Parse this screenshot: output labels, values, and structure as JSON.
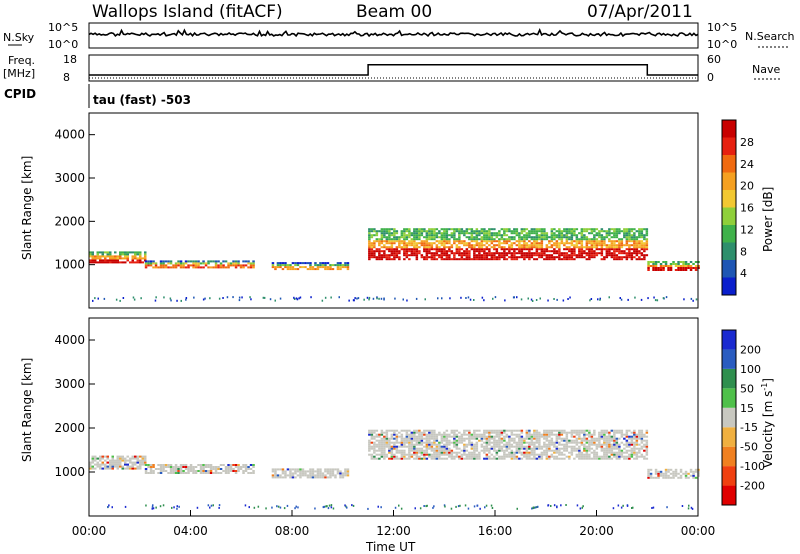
{
  "header": {
    "station": "Wallops Island (fitACF)",
    "beam": "Beam 00",
    "date": "07/Apr/2011"
  },
  "top_panel": {
    "left_label": "N.Sky",
    "right_label": "N.Search",
    "left_ticks": [
      "10^5",
      "10^0"
    ],
    "right_ticks": [
      "10^5",
      "10^0"
    ]
  },
  "freq_panel": {
    "left_label_line1": "Freq.",
    "left_label_line2": "[MHz]",
    "left_ticks": [
      "18",
      "8"
    ],
    "right_label": "Nave",
    "right_ticks": [
      "60",
      "0"
    ],
    "cpid_label": "CPID",
    "cpid_text": "tau (fast) -503"
  },
  "power_panel": {
    "ylabel": "Slant Range [km]",
    "ytick_labels": [
      "4000",
      "3000",
      "2000",
      "1000"
    ],
    "colorbar_label": "Power [dB]",
    "colorbar_ticks": [
      "28",
      "24",
      "20",
      "16",
      "12",
      "8",
      "4"
    ],
    "colors": [
      "#0a1fcc",
      "#1e56b4",
      "#2e8f6c",
      "#3fb14a",
      "#8fcf3a",
      "#f2c832",
      "#f5a020",
      "#f06a10",
      "#e62010",
      "#c80000"
    ]
  },
  "velocity_panel": {
    "ylabel": "Slant Range [km]",
    "ytick_labels": [
      "4000",
      "3000",
      "2000",
      "1000"
    ],
    "colorbar_label": "Velocity [m s^-1]",
    "colorbar_ticks": [
      "200",
      "100",
      "50",
      "15",
      "-15",
      "-50",
      "-100",
      "-200"
    ],
    "colors": [
      "#1a2ad0",
      "#2a5cc0",
      "#2f8f4e",
      "#4fc04a",
      "#c8c8c0",
      "#f0b040",
      "#f08020",
      "#f04010",
      "#e00000"
    ]
  },
  "x_axis": {
    "xlabel": "Time UT",
    "tick_labels": [
      "00:00",
      "04:00",
      "08:00",
      "12:00",
      "16:00",
      "20:00",
      "00:00"
    ]
  },
  "chart_data": {
    "type": "heatmap",
    "x_units": "hours UT",
    "xlim": [
      0,
      24
    ],
    "y_units": "km",
    "ylim": [
      0,
      4500
    ],
    "freq_segments": [
      {
        "start": 0,
        "end": 11,
        "value": 10.5
      },
      {
        "start": 11,
        "end": 22,
        "value": 14.8
      },
      {
        "start": 22,
        "end": 24,
        "value": 10.5
      }
    ],
    "power_bands": [
      {
        "start": 0,
        "end": 2.2,
        "center": 1200,
        "width": 250,
        "level": 6
      },
      {
        "start": 2.2,
        "end": 6.5,
        "center": 1050,
        "width": 180,
        "level": 4
      },
      {
        "start": 7.2,
        "end": 10.2,
        "center": 1000,
        "width": 160,
        "level": 3
      },
      {
        "start": 11,
        "end": 22,
        "center": 1500,
        "width": 700,
        "level": 6
      },
      {
        "start": 22,
        "end": 24,
        "center": 1000,
        "width": 200,
        "level": 6
      }
    ],
    "velocity_bands": [
      {
        "start": 0,
        "end": 2.2,
        "center": 1250,
        "width": 300,
        "level": 4
      },
      {
        "start": 2.2,
        "end": 6.5,
        "center": 1100,
        "width": 200,
        "level": 3
      },
      {
        "start": 7.2,
        "end": 10.2,
        "center": 1000,
        "width": 200,
        "level": 3
      },
      {
        "start": 11,
        "end": 22,
        "center": 1650,
        "width": 650,
        "level": 4
      },
      {
        "start": 22,
        "end": 24,
        "center": 1000,
        "width": 220,
        "level": 4
      }
    ]
  }
}
